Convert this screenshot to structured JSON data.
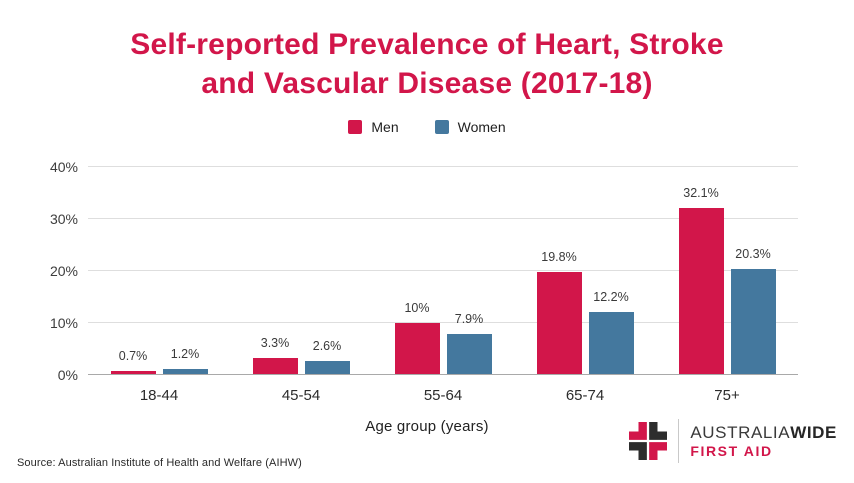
{
  "title": {
    "line1": "Self-reported Prevalence of Heart, Stroke",
    "line2": "and Vascular Disease (2017-18)"
  },
  "colors": {
    "accent_red": "#d2164a",
    "accent_blue": "#44789e",
    "title_red": "#d2164a",
    "grid_gray": "#dedede",
    "axis_gray": "#a9a9a9",
    "logo_dark": "#2d2d2d"
  },
  "legend": [
    {
      "label": "Men",
      "color": "#d2164a"
    },
    {
      "label": "Women",
      "color": "#44789e"
    }
  ],
  "chart_data": {
    "type": "bar",
    "title": "Self-reported Prevalence of Heart, Stroke and Vascular Disease (2017-18)",
    "categories": [
      "18-44",
      "45-54",
      "55-64",
      "65-74",
      "75+"
    ],
    "series": [
      {
        "name": "Men",
        "color": "#d2164a",
        "values": [
          0.7,
          3.3,
          10,
          19.8,
          32.1
        ],
        "labels": [
          "0.7%",
          "3.3%",
          "10%",
          "19.8%",
          "32.1%"
        ]
      },
      {
        "name": "Women",
        "color": "#44789e",
        "values": [
          1.2,
          2.6,
          7.9,
          12.2,
          20.3
        ],
        "labels": [
          "1.2%",
          "2.6%",
          "7.9%",
          "12.2%",
          "20.3%"
        ]
      }
    ],
    "xlabel": "Age group (years)",
    "ylabel": "",
    "ylim": [
      0,
      40
    ],
    "y_ticks": [
      "0%",
      "10%",
      "20%",
      "30%",
      "40%"
    ],
    "grid": true,
    "legend_position": "top"
  },
  "footer": {
    "source": "Source: Australian Institute of Health and Welfare (AIHW)"
  },
  "logo": {
    "name_regular": "AUSTRALIA",
    "name_bold": "WIDE",
    "tagline": "FIRST AID",
    "red": "#d2164a",
    "dark": "#2d2d2d"
  }
}
